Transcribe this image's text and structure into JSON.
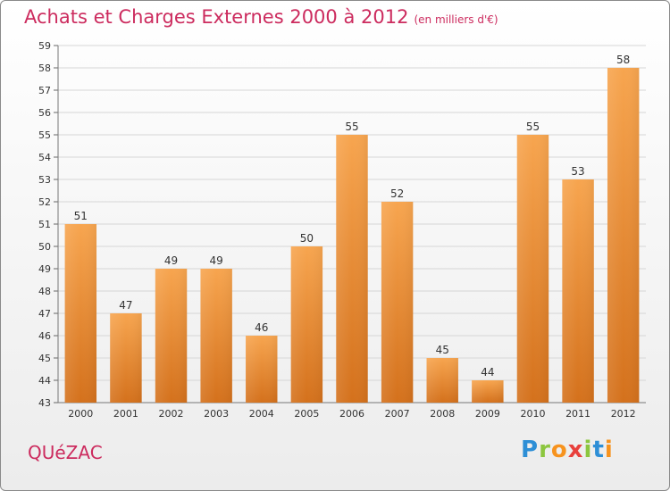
{
  "title": "Achats et Charges Externes 2000 à 2012",
  "subtitle": "(en milliers d'€)",
  "commune": "QUéZAC",
  "logo": {
    "letters": [
      "P",
      "r",
      "o",
      "x",
      "i",
      "t",
      "i"
    ]
  },
  "colors": {
    "title": "#cc2b5e",
    "bar_top": "#f7a54f",
    "bar_bottom": "#d4711c"
  },
  "chart_data": {
    "type": "bar",
    "categories": [
      "2000",
      "2001",
      "2002",
      "2003",
      "2004",
      "2005",
      "2006",
      "2007",
      "2008",
      "2009",
      "2010",
      "2011",
      "2012"
    ],
    "values": [
      51,
      47,
      49,
      49,
      46,
      50,
      55,
      52,
      45,
      44,
      55,
      53,
      58
    ],
    "title": "Achats et Charges Externes 2000 à 2012",
    "subtitle": "(en milliers d'€)",
    "ylim": [
      43,
      59
    ],
    "yticks": [
      43,
      44,
      45,
      46,
      47,
      48,
      49,
      50,
      51,
      52,
      53,
      54,
      55,
      56,
      57,
      58,
      59
    ],
    "grid": true,
    "legend": "none"
  }
}
